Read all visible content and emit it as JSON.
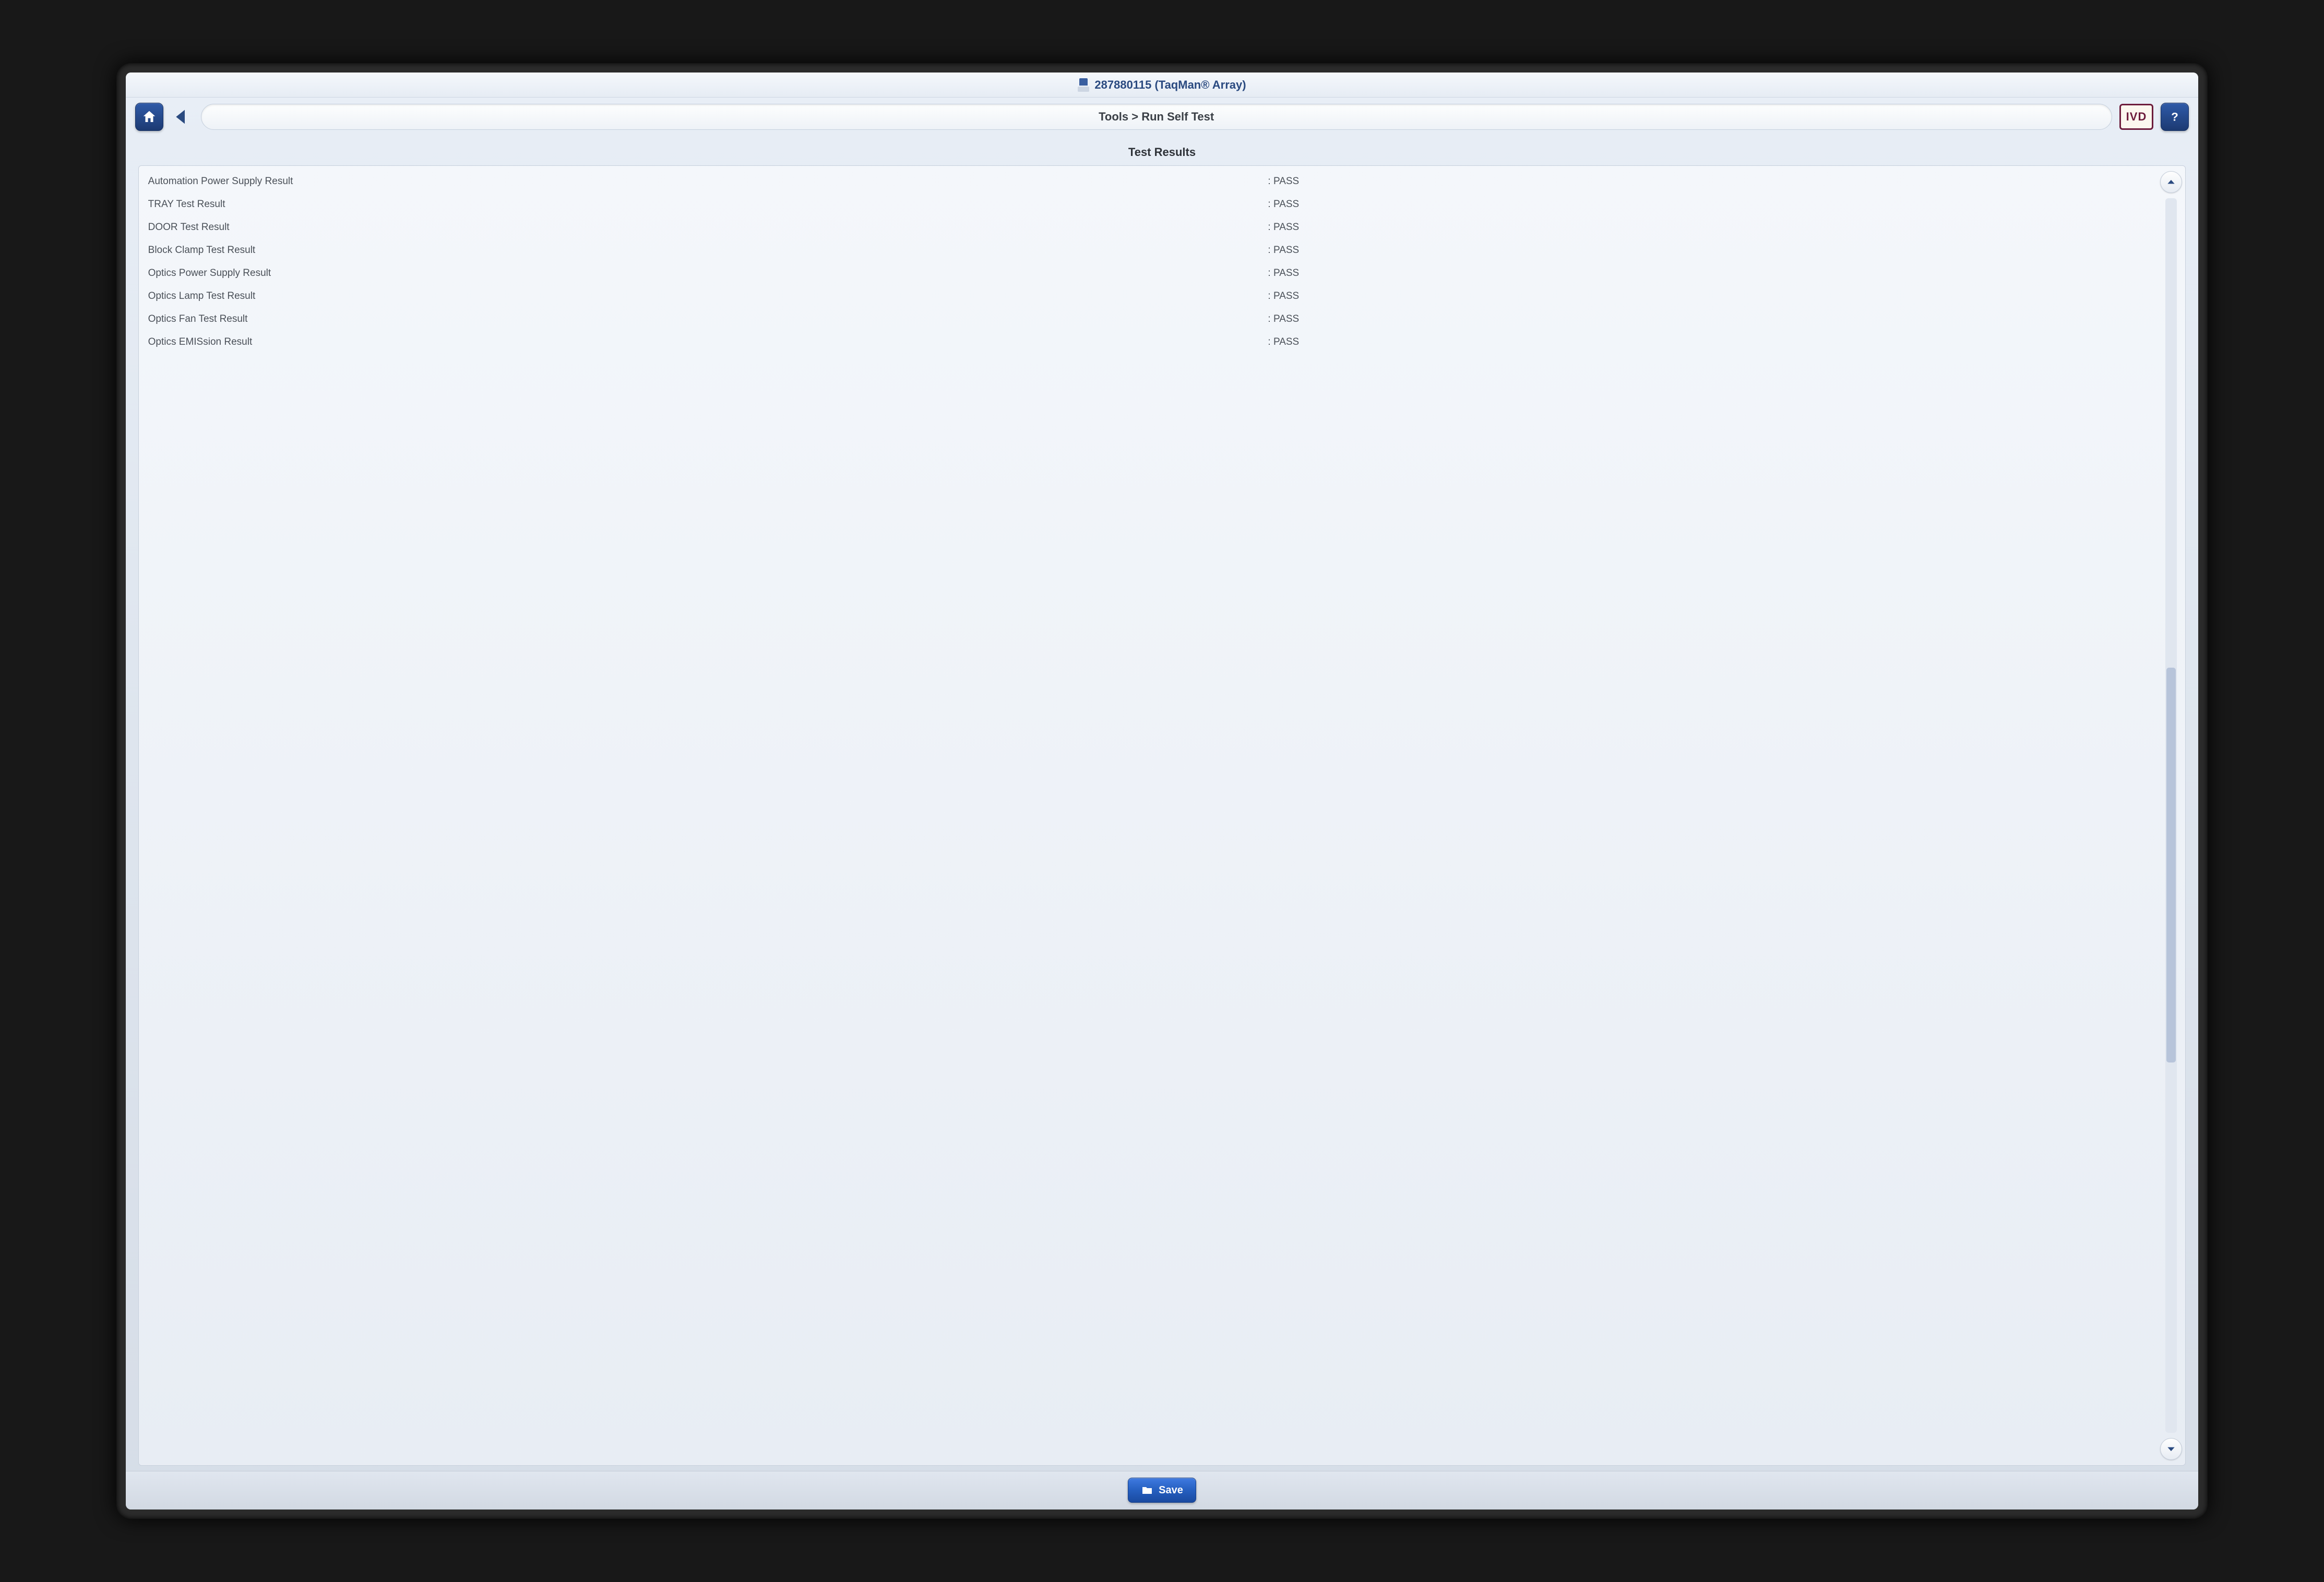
{
  "header": {
    "device_title": "287880115 (TaqMan® Array)"
  },
  "nav": {
    "breadcrumb": "Tools > Run Self Test",
    "ivd_label": "IVD"
  },
  "results": {
    "section_title": "Test Results",
    "rows": [
      {
        "label": "Automation Power Supply Result",
        "value": "PASS"
      },
      {
        "label": "TRAY Test Result",
        "value": "PASS"
      },
      {
        "label": "DOOR Test Result",
        "value": "PASS"
      },
      {
        "label": "Block Clamp Test Result",
        "value": "PASS"
      },
      {
        "label": "Optics Power Supply Result",
        "value": "PASS"
      },
      {
        "label": "Optics Lamp Test Result",
        "value": "PASS"
      },
      {
        "label": "Optics Fan Test Result",
        "value": "PASS"
      },
      {
        "label": "Optics EMISsion Result",
        "value": "PASS"
      }
    ],
    "scrollbar": {
      "thumb_top_pct": 38,
      "thumb_height_pct": 32,
      "thumb_color": "#b7c4da",
      "track_color": "#e0e6ef"
    }
  },
  "footer": {
    "save_label": "Save"
  },
  "colors": {
    "brand_blue": "#2a4a80",
    "button_blue_top": "#2f5aa8",
    "button_blue_bottom": "#1c3a72",
    "screen_bg_top": "#e8eef6",
    "screen_bg_bottom": "#d6dde7",
    "panel_border": "#c7d0dc",
    "text_gray": "#4a5058",
    "ivd_maroon": "#6d1d3c"
  }
}
